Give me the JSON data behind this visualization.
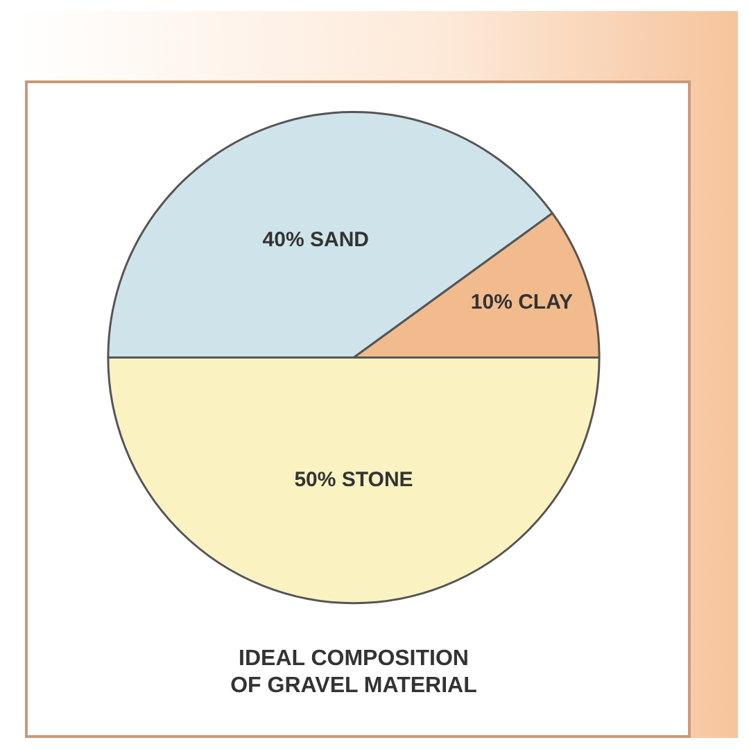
{
  "chart_data": {
    "type": "pie",
    "title": "IDEAL COMPOSITION\nOF GRAVEL MATERIAL",
    "categories": [
      "SAND",
      "CLAY",
      "STONE"
    ],
    "values": [
      40,
      10,
      50
    ],
    "colors": [
      "#cfe3ea",
      "#f2bb8e",
      "#fbf2c2"
    ],
    "value_labels": [
      "40%",
      "10%",
      "50%"
    ],
    "legend": false
  }
}
